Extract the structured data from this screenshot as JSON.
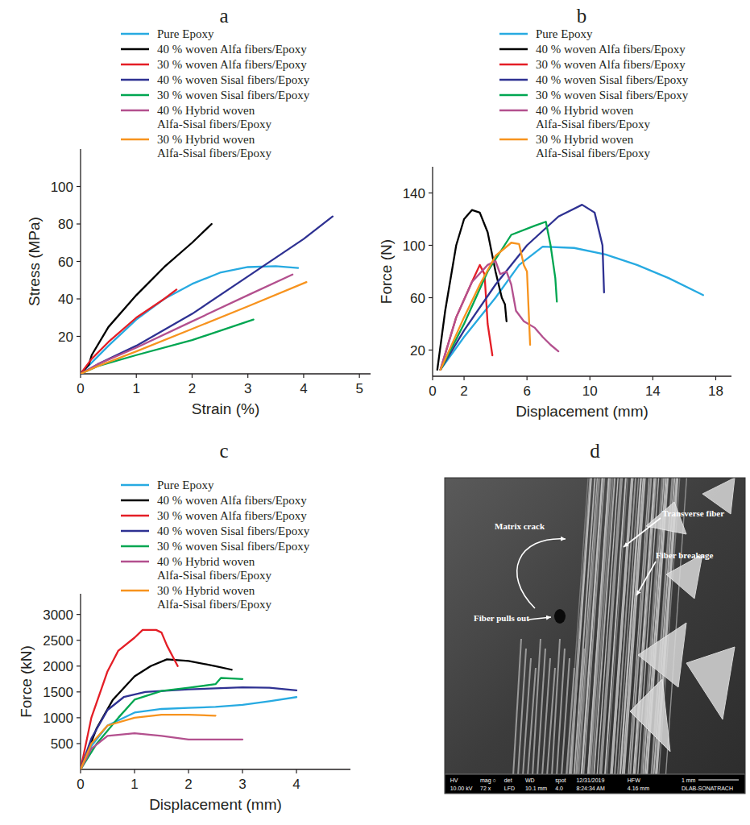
{
  "chart_data": [
    {
      "type": "line",
      "title": "a",
      "x_label": "Strain (%)",
      "y_label": "Stress (MPa)",
      "xlim": [
        0,
        5.2
      ],
      "ylim": [
        0,
        120
      ],
      "xticks": [
        0,
        1,
        2,
        3,
        4,
        5
      ],
      "yticks": [
        20,
        40,
        60,
        80,
        100
      ],
      "legend": "top",
      "series": [
        {
          "name": "Pure Epoxy",
          "color": "#27aae1",
          "x": [
            0,
            0.5,
            1,
            1.5,
            2,
            2.5,
            3,
            3.5,
            3.9
          ],
          "values": [
            0,
            15,
            29,
            40,
            48,
            54,
            57,
            57.5,
            56.5
          ]
        },
        {
          "name": "40 % woven Alfa fibers/Epoxy",
          "color": "#000000",
          "x": [
            0,
            0.15,
            0.2,
            0.5,
            1,
            1.5,
            2,
            2.35
          ],
          "values": [
            0,
            5,
            10,
            25,
            42,
            57,
            70,
            80
          ]
        },
        {
          "name": "30 % woven Alfa fibers/Epoxy",
          "color": "#e41e26",
          "x": [
            0,
            0.2,
            0.5,
            1,
            1.5,
            1.72
          ],
          "values": [
            0,
            8,
            17,
            30,
            40,
            45
          ]
        },
        {
          "name": "40 % woven Sisal fibers/Epoxy",
          "color": "#2e3192",
          "x": [
            0,
            0.3,
            1,
            2,
            3,
            4,
            4.52
          ],
          "values": [
            0,
            5,
            15,
            32,
            52,
            72,
            84
          ]
        },
        {
          "name": "30 % woven Sisal fibers/Epoxy",
          "color": "#00a651",
          "x": [
            0,
            0.3,
            1,
            2,
            3.1
          ],
          "values": [
            0,
            4,
            10,
            18,
            29
          ]
        },
        {
          "name": "40 % Hybrid woven Alfa-Sisal fibers/Epoxy",
          "color": "#b3508e",
          "x": [
            0,
            0.3,
            1,
            2,
            3,
            3.8
          ],
          "values": [
            0,
            5,
            14,
            28,
            42,
            53
          ]
        },
        {
          "name": "30 % Hybrid woven Alfa-Sisal fibers/Epoxy",
          "color": "#f7931e",
          "x": [
            0,
            0.3,
            1,
            2,
            3,
            4.05
          ],
          "values": [
            0,
            4,
            12,
            24,
            36,
            49
          ]
        }
      ]
    },
    {
      "type": "line",
      "title": "b",
      "x_label": "Displacement (mm)",
      "y_label": "Force (N)",
      "xlim": [
        0,
        19
      ],
      "ylim": [
        0,
        160
      ],
      "xticks": [
        0,
        2,
        6,
        10,
        14,
        18
      ],
      "yticks": [
        20,
        60,
        100,
        140
      ],
      "legend": "top",
      "series": [
        {
          "name": "Pure Epoxy",
          "color": "#27aae1",
          "x": [
            0.5,
            2,
            4,
            5.5,
            7,
            9,
            11,
            13,
            15,
            17.2
          ],
          "values": [
            5,
            30,
            60,
            85,
            99,
            98,
            93,
            85,
            75,
            62
          ]
        },
        {
          "name": "40 % woven Alfa fibers/Epoxy",
          "color": "#000000",
          "x": [
            0.3,
            0.8,
            1.5,
            2,
            2.5,
            3,
            3.5,
            4,
            4.4,
            4.6,
            4.7
          ],
          "values": [
            5,
            50,
            100,
            120,
            127,
            125,
            110,
            80,
            60,
            55,
            42
          ]
        },
        {
          "name": "30 % woven Alfa fibers/Epoxy",
          "color": "#e41e26",
          "x": [
            0.5,
            1.5,
            2.5,
            3,
            3.3,
            3.5,
            3.8
          ],
          "values": [
            5,
            45,
            72,
            85,
            78,
            40,
            16
          ]
        },
        {
          "name": "40 % woven Sisal fibers/Epoxy",
          "color": "#2e3192",
          "x": [
            0.5,
            2,
            4,
            6,
            8,
            9.5,
            10.3,
            10.8,
            10.9
          ],
          "values": [
            5,
            35,
            70,
            100,
            122,
            131,
            125,
            100,
            64
          ]
        },
        {
          "name": "30 % woven Sisal fibers/Epoxy",
          "color": "#00a651",
          "x": [
            0.5,
            2,
            3.5,
            5,
            6.5,
            7.2,
            7.5,
            7.8,
            7.9
          ],
          "values": [
            5,
            40,
            80,
            108,
            115,
            118,
            100,
            75,
            57
          ]
        },
        {
          "name": "40 % Hybrid woven Alfa-Sisal fibers/Epoxy",
          "color": "#b3508e",
          "x": [
            0.5,
            1.5,
            2.5,
            3.5,
            4,
            4.3,
            4.7,
            5,
            5.3,
            5.8,
            6.5,
            7,
            7.5,
            8
          ],
          "values": [
            5,
            45,
            72,
            85,
            88,
            78,
            80,
            70,
            50,
            42,
            37,
            30,
            24,
            19
          ]
        },
        {
          "name": "30 % Hybrid woven Alfa-Sisal fibers/Epoxy",
          "color": "#f7931e",
          "x": [
            0.5,
            2,
            3,
            4,
            5,
            5.5,
            5.8,
            6,
            6.2
          ],
          "values": [
            5,
            45,
            70,
            92,
            102,
            101,
            85,
            80,
            24
          ]
        }
      ]
    },
    {
      "type": "line",
      "title": "c",
      "x_label": "Displacement (mm)",
      "y_label": "Force (kN)",
      "xlim": [
        0,
        5
      ],
      "ylim": [
        0,
        3400
      ],
      "xticks": [
        0,
        1,
        2,
        3,
        4
      ],
      "yticks": [
        500,
        1000,
        1500,
        2000,
        2500,
        3000
      ],
      "legend": "top",
      "series": [
        {
          "name": "Pure Epoxy",
          "color": "#27aae1",
          "x": [
            0,
            0.2,
            0.5,
            1,
            1.5,
            2,
            2.5,
            3,
            3.5,
            4
          ],
          "values": [
            0,
            450,
            850,
            1100,
            1170,
            1190,
            1210,
            1250,
            1320,
            1400
          ]
        },
        {
          "name": "40 % woven Alfa fibers/Epoxy",
          "color": "#000000",
          "x": [
            0,
            0.3,
            0.6,
            1,
            1.3,
            1.6,
            2,
            2.5,
            2.8
          ],
          "values": [
            0,
            800,
            1350,
            1800,
            2000,
            2130,
            2100,
            2000,
            1930
          ]
        },
        {
          "name": "30 % woven Alfa fibers/Epoxy",
          "color": "#e41e26",
          "x": [
            0,
            0.2,
            0.5,
            0.7,
            1,
            1.15,
            1.4,
            1.5,
            1.6,
            1.8
          ],
          "values": [
            0,
            1000,
            1900,
            2300,
            2550,
            2700,
            2700,
            2650,
            2400,
            2000
          ]
        },
        {
          "name": "40 % woven Sisal fibers/Epoxy",
          "color": "#2e3192",
          "x": [
            0,
            0.2,
            0.5,
            0.8,
            1.2,
            2,
            3,
            3.5,
            4
          ],
          "values": [
            0,
            600,
            1150,
            1400,
            1500,
            1550,
            1590,
            1580,
            1530
          ]
        },
        {
          "name": "30 % woven Sisal fibers/Epoxy",
          "color": "#00a651",
          "x": [
            0,
            0.3,
            0.7,
            1,
            1.5,
            2,
            2.5,
            2.6,
            2.8,
            3
          ],
          "values": [
            0,
            500,
            1000,
            1350,
            1520,
            1580,
            1650,
            1770,
            1760,
            1750
          ]
        },
        {
          "name": "40 % Hybrid woven Alfa-Sisal fibers/Epoxy",
          "color": "#b3508e",
          "x": [
            0,
            0.2,
            0.5,
            1,
            1.5,
            2,
            2.5,
            3
          ],
          "values": [
            0,
            400,
            650,
            700,
            650,
            580,
            580,
            580
          ]
        },
        {
          "name": "30 % Hybrid woven Alfa-Sisal fibers/Epoxy",
          "color": "#f7931e",
          "x": [
            0,
            0.2,
            0.5,
            1,
            1.5,
            2,
            2.5
          ],
          "values": [
            0,
            500,
            850,
            1000,
            1060,
            1060,
            1040
          ]
        }
      ]
    }
  ],
  "image": {
    "title": "d",
    "annotations": [
      "Matrix crack",
      "Transverse fiber",
      "Fiber breakage",
      "Fiber pulls out"
    ],
    "info_bar": {
      "top": [
        "HV",
        "mag ○",
        "det",
        "WD",
        "spot",
        "12/31/2019",
        "HFW",
        "1 mm"
      ],
      "bottom": [
        "10.00 kV",
        "72 x",
        "LFD",
        "10.1 mm",
        "4.0",
        "8:24:34 AM",
        "4.16 mm",
        "DLAB-SONATRACH"
      ]
    }
  }
}
